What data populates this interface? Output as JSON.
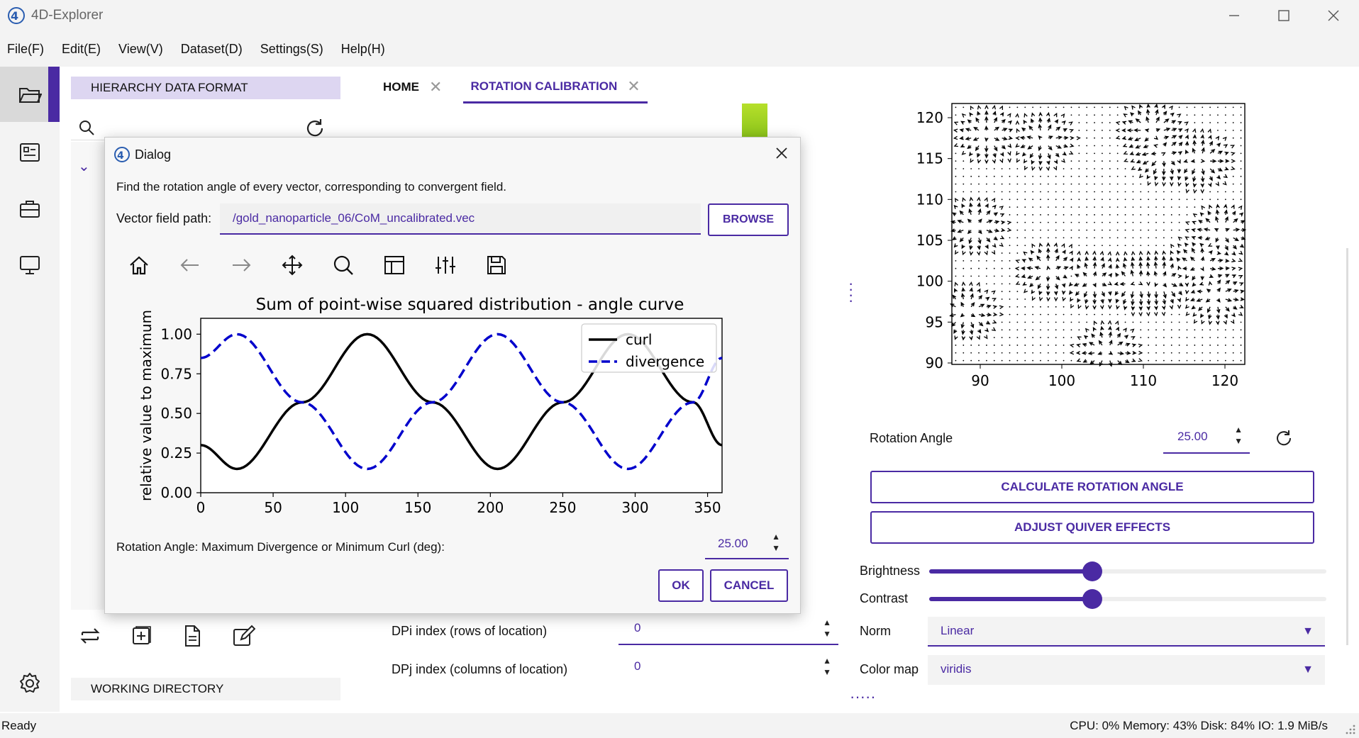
{
  "app": {
    "title": "4D-Explorer"
  },
  "menu": [
    "File(F)",
    "Edit(E)",
    "View(V)",
    "Dataset(D)",
    "Settings(S)",
    "Help(H)"
  ],
  "left_panel": {
    "hdf_label": "HIERARCHY DATA FORMAT",
    "working_directory_label": "WORKING DIRECTORY"
  },
  "tabs": [
    {
      "label": "HOME",
      "active": false
    },
    {
      "label": "ROTATION CALIBRATION",
      "active": true
    }
  ],
  "center": {
    "dpi_label": "DPi index (rows of location)",
    "dpi_value": "0",
    "dpj_label": "DPj index (columns of location)",
    "dpj_value": "0"
  },
  "right_panel": {
    "rotation_angle_label": "Rotation Angle",
    "rotation_angle_value": "25.00",
    "calculate_button": "CALCULATE ROTATION ANGLE",
    "adjust_button": "ADJUST QUIVER EFFECTS",
    "brightness_label": "Brightness",
    "brightness_level": 0.41,
    "contrast_label": "Contrast",
    "contrast_level": 0.41,
    "norm_label": "Norm",
    "norm_value": "Linear",
    "colormap_label": "Color map",
    "colormap_value": "viridis",
    "quiver_plot": {
      "x_ticks": [
        "90",
        "100",
        "110",
        "120"
      ],
      "y_ticks": [
        "120",
        "115",
        "110",
        "105",
        "100",
        "95",
        "90"
      ]
    }
  },
  "dialog": {
    "title": "Dialog",
    "description": "Find the rotation angle of every vector, corresponding to convergent field.",
    "path_label": "Vector field path:",
    "path_value": "/gold_nanoparticle_06/CoM_uncalibrated.vec",
    "browse_button": "BROWSE",
    "rotation_label": "Rotation Angle: Maximum Divergence or Minimum Curl (deg):",
    "rotation_value": "25.00",
    "ok_button": "OK",
    "cancel_button": "CANCEL"
  },
  "chart_data": {
    "type": "line",
    "title": "Sum of point-wise squared distribution - angle curve",
    "xlabel": "",
    "ylabel": "relative value to maximum",
    "xlim": [
      0,
      360
    ],
    "ylim": [
      0,
      1.1
    ],
    "x_ticks": [
      "0",
      "50",
      "100",
      "150",
      "200",
      "250",
      "300",
      "350"
    ],
    "y_ticks": [
      "0.00",
      "0.25",
      "0.50",
      "0.75",
      "1.00"
    ],
    "legend_position": "top-right",
    "series": [
      {
        "name": "curl",
        "style": "solid",
        "color": "#000000",
        "x": [
          0,
          25,
          70,
          115,
          160,
          205,
          250,
          295,
          340,
          360
        ],
        "y": [
          0.3,
          0.15,
          0.57,
          1.0,
          0.57,
          0.15,
          0.57,
          1.0,
          0.57,
          0.3
        ]
      },
      {
        "name": "divergence",
        "style": "dashed",
        "color": "#0000cc",
        "x": [
          0,
          25,
          70,
          115,
          160,
          205,
          250,
          295,
          340,
          360
        ],
        "y": [
          0.85,
          1.0,
          0.57,
          0.15,
          0.57,
          1.0,
          0.57,
          0.15,
          0.57,
          0.85
        ]
      }
    ]
  },
  "status": {
    "left": "Ready",
    "right": "CPU: 0%  Memory: 43%  Disk: 84%  IO: 1.9 MiB/s"
  },
  "colors": {
    "accent": "#4a2aa3",
    "hdf_bg": "#ddd6f1",
    "green_indicator": "#9ad321"
  },
  "icons": {
    "rail": [
      "folder-icon",
      "document-list-icon",
      "briefcase-icon",
      "monitor-icon"
    ],
    "bottom_tools": [
      "swap-icon",
      "add-file-icon",
      "file-icon",
      "edit-icon"
    ],
    "mpl_toolbar": [
      "home-icon",
      "back-icon",
      "forward-icon",
      "pan-icon",
      "zoom-icon",
      "subplots-icon",
      "configure-icon",
      "save-icon"
    ]
  }
}
